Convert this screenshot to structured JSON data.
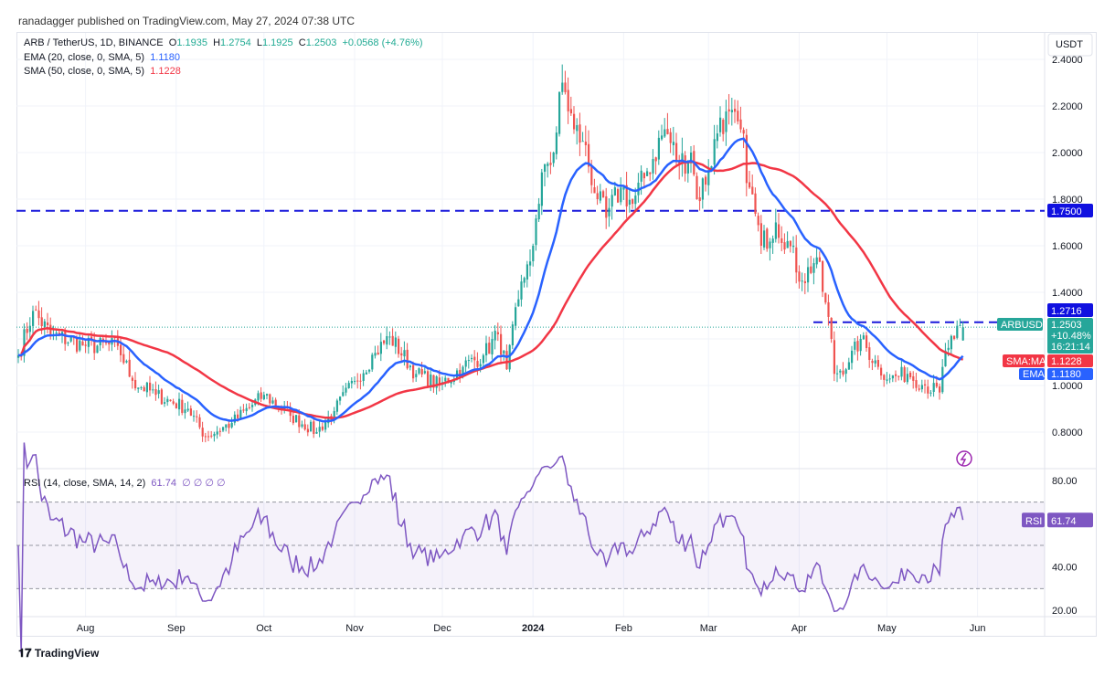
{
  "publisher": "ranadagger published on TradingView.com, May 27, 2024 07:38 UTC",
  "legend": {
    "symbol": "ARB / TetherUS, 1D, BINANCE",
    "o_label": "O",
    "o": "1.1935",
    "h_label": "H",
    "h": "1.2754",
    "l_label": "L",
    "l": "1.1925",
    "c_label": "C",
    "c": "1.2503",
    "change": "+0.0568 (+4.76%)",
    "ema": "EMA (20, close, 0, SMA, 5)",
    "ema_val": "1.1180",
    "sma": "SMA (50, close, 0, SMA, 5)",
    "sma_val": "1.1228",
    "rsi": "RSI (14, close, SMA, 14, 2)",
    "rsi_val": "61.74",
    "rsi_extra": "∅ ∅ ∅ ∅"
  },
  "axis": {
    "currency": "USDT",
    "price_ticks": [
      "2.4000",
      "2.2000",
      "2.0000",
      "1.8000",
      "1.6000",
      "1.4000",
      "1.0000",
      "0.8000"
    ],
    "rsi_ticks": [
      "80.00",
      "40.00",
      "20.00"
    ],
    "time_ticks": [
      "Aug",
      "Sep",
      "Oct",
      "Nov",
      "Dec",
      "2024",
      "Feb",
      "Mar",
      "Apr",
      "May",
      "Jun"
    ]
  },
  "labels": {
    "resistance": "1.2716",
    "resistance_upper": "1.7500",
    "ticker": "ARBUSDT",
    "price": "1.2503",
    "pct": "+10.48%",
    "countdown": "16:21:14",
    "sma_tag": "SMA:MA",
    "sma_val": "1.1228",
    "ema_tag": "EMA",
    "ema_val": "1.1180",
    "rsi_tag": "RSI",
    "rsi_val": "61.74"
  },
  "footer": "TradingView",
  "colors": {
    "up": "#26a69a",
    "down": "#ef5350",
    "ema": "#2962ff",
    "sma": "#f23645",
    "rsi": "#7e57c2",
    "hline": "#1a1adb"
  },
  "chart_data": {
    "type": "candlestick",
    "start_date": "2023-07-09",
    "end_date": "2024-05-27",
    "ylim": [
      0.7,
      2.45
    ],
    "rsi_ylim": [
      15,
      85
    ],
    "horizontal_lines": [
      1.75,
      1.2716
    ],
    "rsi_levels": [
      70,
      50,
      30
    ],
    "anchor_closes": [
      [
        "2023-07-09",
        1.13
      ],
      [
        "2023-07-14",
        1.32
      ],
      [
        "2023-07-20",
        1.22
      ],
      [
        "2023-08-01",
        1.17
      ],
      [
        "2023-08-12",
        1.17
      ],
      [
        "2023-08-17",
        1.02
      ],
      [
        "2023-08-25",
        0.96
      ],
      [
        "2023-09-05",
        0.9
      ],
      [
        "2023-09-11",
        0.78
      ],
      [
        "2023-09-20",
        0.84
      ],
      [
        "2023-10-01",
        0.96
      ],
      [
        "2023-10-10",
        0.87
      ],
      [
        "2023-10-19",
        0.8
      ],
      [
        "2023-10-25",
        0.89
      ],
      [
        "2023-11-01",
        1.02
      ],
      [
        "2023-11-08",
        1.14
      ],
      [
        "2023-11-13",
        1.21
      ],
      [
        "2023-11-22",
        1.05
      ],
      [
        "2023-11-30",
        1.0
      ],
      [
        "2023-12-08",
        1.08
      ],
      [
        "2023-12-15",
        1.13
      ],
      [
        "2023-12-20",
        1.22
      ],
      [
        "2023-12-23",
        1.07
      ],
      [
        "2023-12-27",
        1.37
      ],
      [
        "2023-12-30",
        1.52
      ],
      [
        "2024-01-01",
        1.6
      ],
      [
        "2024-01-03",
        1.78
      ],
      [
        "2024-01-05",
        1.95
      ],
      [
        "2024-01-08",
        2.0
      ],
      [
        "2024-01-11",
        2.3
      ],
      [
        "2024-01-15",
        2.1
      ],
      [
        "2024-01-18",
        2.05
      ],
      [
        "2024-01-23",
        1.8
      ],
      [
        "2024-01-26",
        1.72
      ],
      [
        "2024-01-31",
        1.85
      ],
      [
        "2024-02-04",
        1.78
      ],
      [
        "2024-02-09",
        1.92
      ],
      [
        "2024-02-15",
        2.1
      ],
      [
        "2024-02-20",
        1.95
      ],
      [
        "2024-02-24",
        2.0
      ],
      [
        "2024-02-26",
        1.8
      ],
      [
        "2024-03-01",
        1.92
      ],
      [
        "2024-03-05",
        2.15
      ],
      [
        "2024-03-12",
        2.1
      ],
      [
        "2024-03-15",
        1.85
      ],
      [
        "2024-03-19",
        1.6
      ],
      [
        "2024-03-24",
        1.7
      ],
      [
        "2024-03-28",
        1.62
      ],
      [
        "2024-04-02",
        1.45
      ],
      [
        "2024-04-07",
        1.55
      ],
      [
        "2024-04-12",
        1.2
      ],
      [
        "2024-04-13",
        1.05
      ],
      [
        "2024-04-18",
        1.1
      ],
      [
        "2024-04-22",
        1.2
      ],
      [
        "2024-04-28",
        1.08
      ],
      [
        "2024-05-02",
        1.03
      ],
      [
        "2024-05-08",
        1.05
      ],
      [
        "2024-05-14",
        1.0
      ],
      [
        "2024-05-19",
        0.97
      ],
      [
        "2024-05-21",
        1.15
      ],
      [
        "2024-05-24",
        1.2
      ],
      [
        "2024-05-27",
        1.25
      ]
    ]
  }
}
